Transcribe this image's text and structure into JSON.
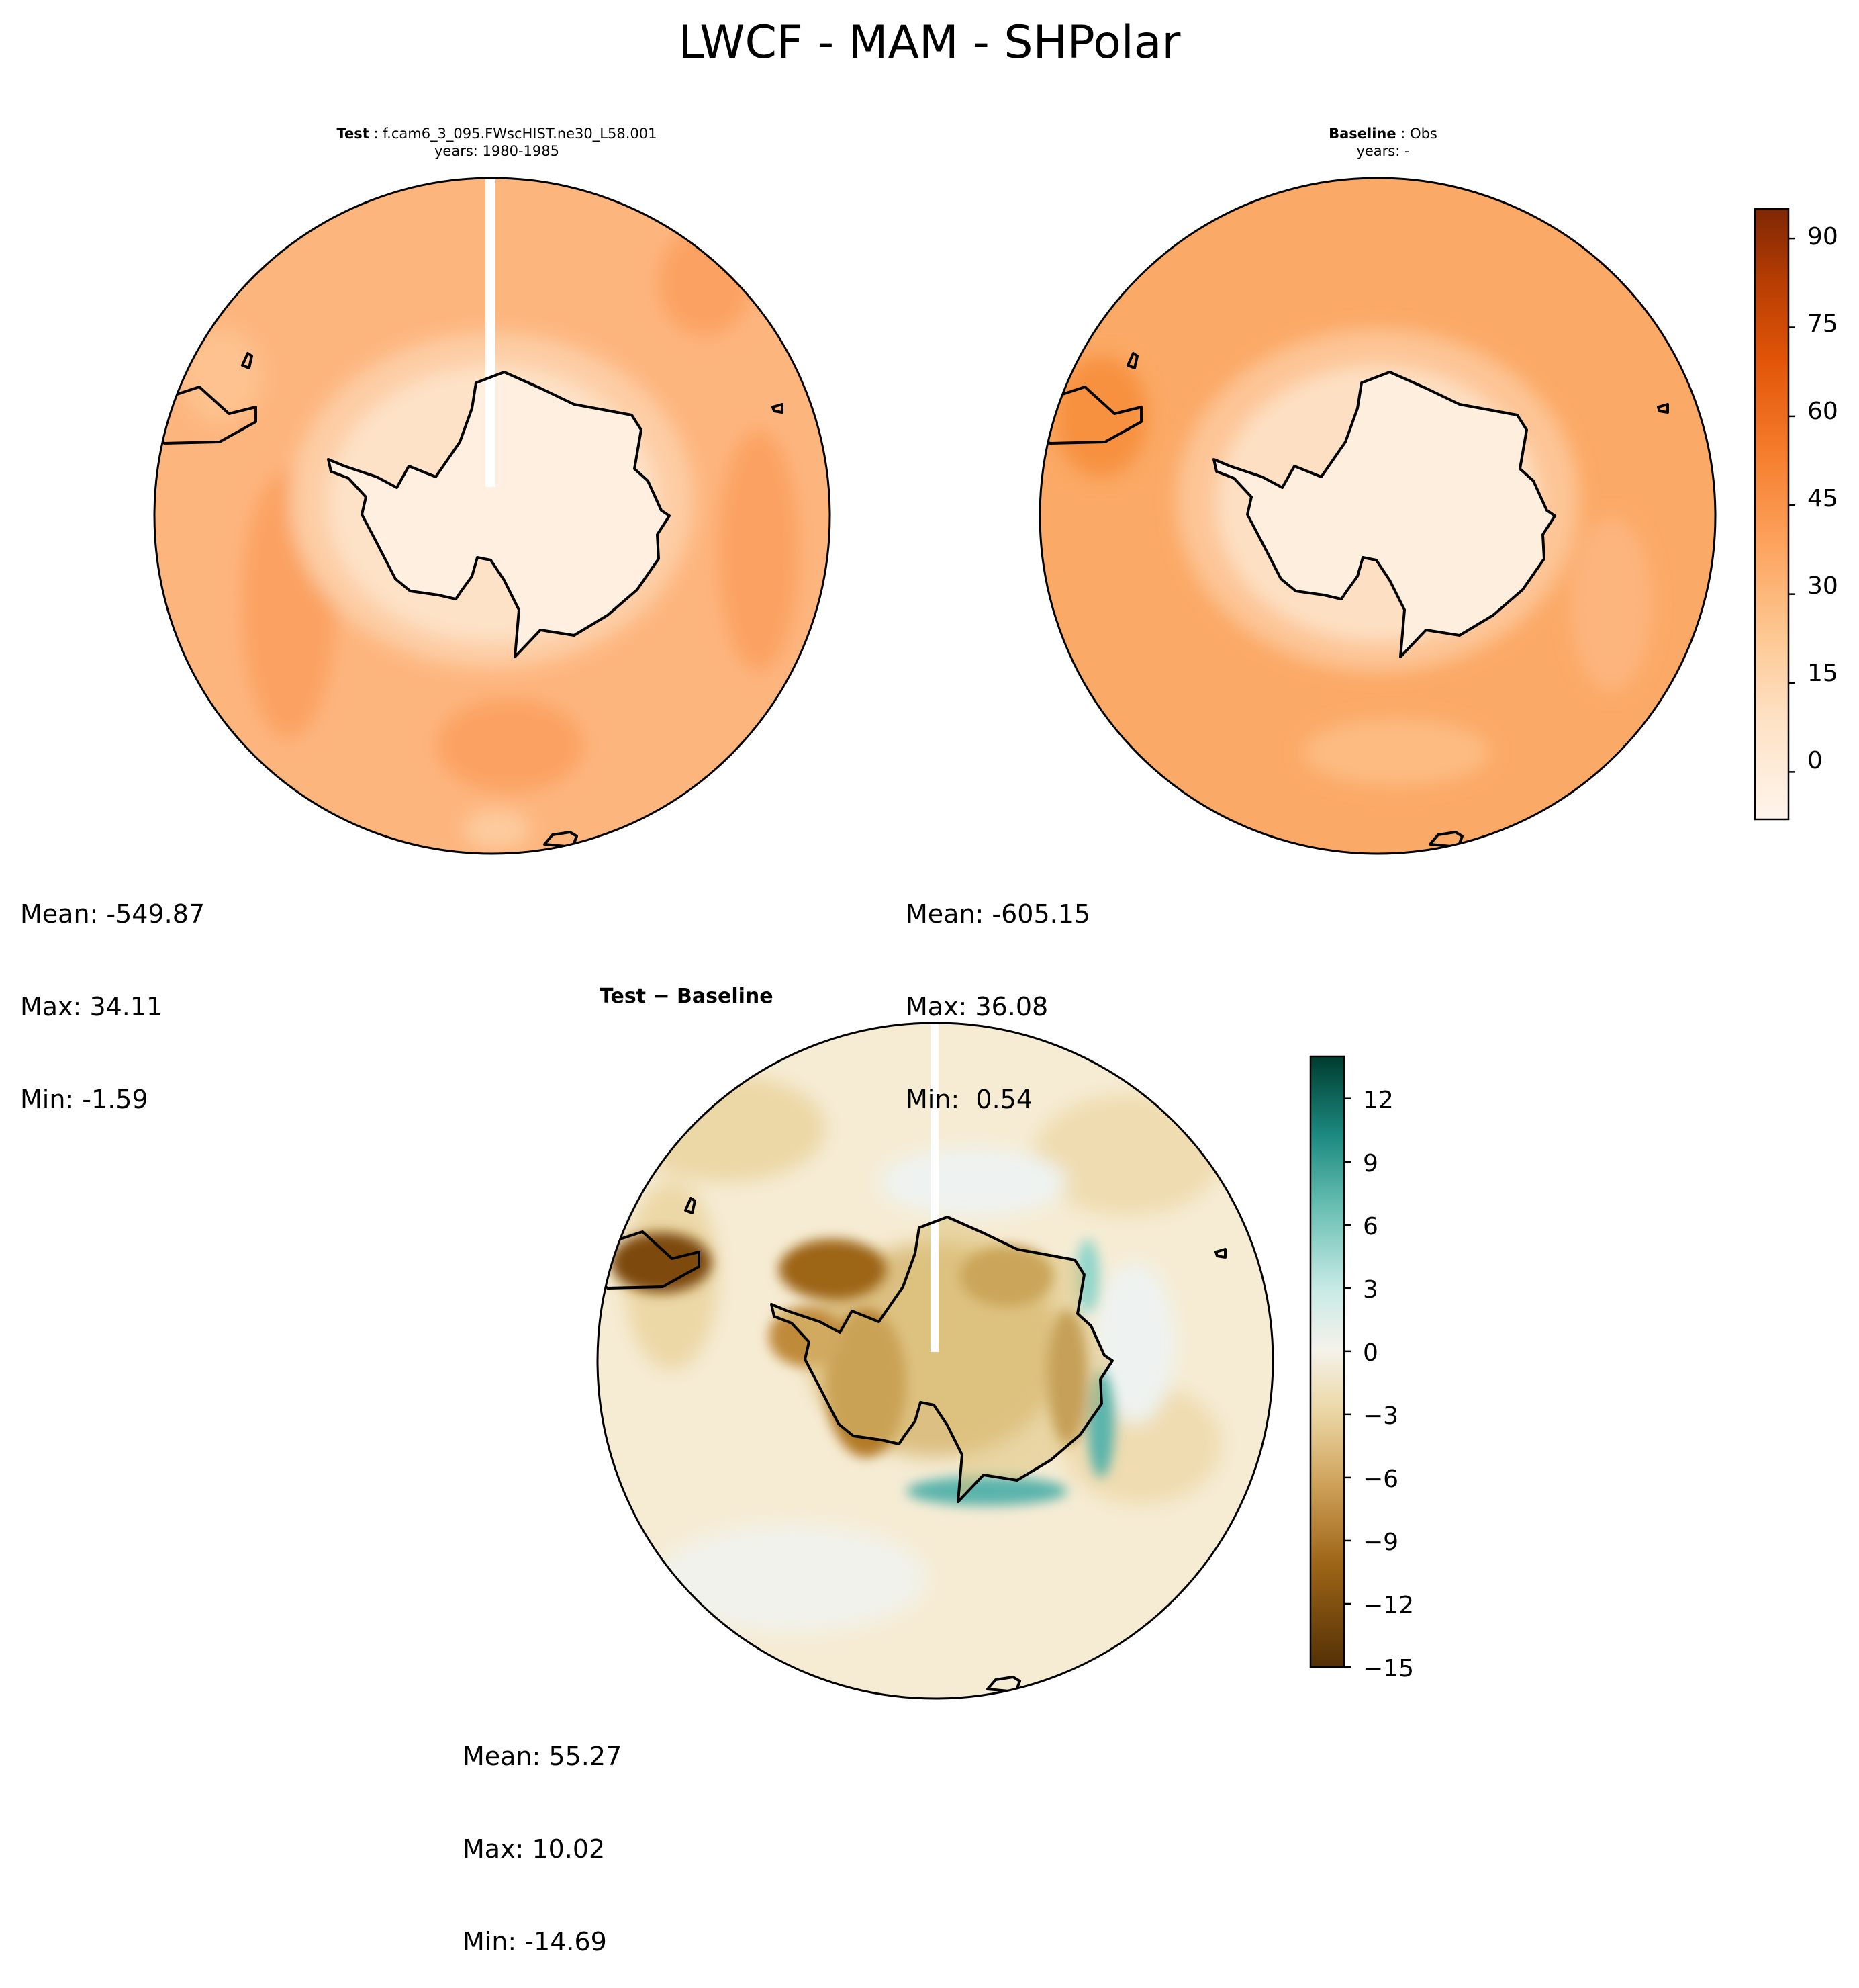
{
  "figure": {
    "title": "LWCF - MAM - SHPolar"
  },
  "panels": {
    "test": {
      "label": "Test",
      "case": "f.cam6_3_095.FWscHIST.ne30_L58.001",
      "years": "years: 1980-1985",
      "stats": {
        "mean": "Mean: -549.87",
        "max": "Max: 34.11",
        "min": "Min: -1.59"
      }
    },
    "baseline": {
      "label": "Baseline",
      "case": "Obs",
      "years": "years: -",
      "stats": {
        "mean": "Mean: -605.15",
        "max": "Max: 36.08",
        "min": "Min:  0.54"
      }
    },
    "diff": {
      "title": "Test − Baseline",
      "stats": {
        "mean": "Mean: 55.27",
        "max": "Max: 10.02",
        "min": "Min: -14.69"
      }
    }
  },
  "chart_data": [
    {
      "type": "heatmap",
      "name": "Test",
      "projection": "south-polar-stereographic",
      "colormap": "Oranges",
      "colorbar": {
        "ticks": [
          "0",
          "15",
          "30",
          "45",
          "60",
          "75",
          "90"
        ],
        "range": [
          -8,
          95
        ]
      },
      "stats": {
        "mean": -549.87,
        "max": 34.11,
        "min": -1.59
      }
    },
    {
      "type": "heatmap",
      "name": "Baseline",
      "projection": "south-polar-stereographic",
      "colormap": "Oranges",
      "colorbar": {
        "ticks": [
          "0",
          "15",
          "30",
          "45",
          "60",
          "75",
          "90"
        ],
        "range": [
          -8,
          95
        ]
      },
      "stats": {
        "mean": -605.15,
        "max": 36.08,
        "min": 0.54
      }
    },
    {
      "type": "heatmap",
      "name": "Test − Baseline",
      "projection": "south-polar-stereographic",
      "colormap": "BrBG",
      "colorbar": {
        "ticks": [
          "12",
          "9",
          "6",
          "3",
          "0",
          "−3",
          "−6",
          "−9",
          "−12",
          "−15"
        ],
        "range": [
          -15,
          14
        ]
      },
      "stats": {
        "mean": 55.27,
        "max": 10.02,
        "min": -14.69
      }
    }
  ],
  "colors": {
    "oranges": [
      "#fff5eb",
      "#feead5",
      "#fee0c0",
      "#fdd0a2",
      "#fdbf86",
      "#fdae6b",
      "#fd9d53",
      "#f8883b",
      "#f3741f",
      "#e6550d",
      "#d94701",
      "#c04002",
      "#a63603",
      "#7f2704"
    ],
    "brbg": [
      "#543005",
      "#7d4a0b",
      "#9d6517",
      "#bf812d",
      "#d1a55f",
      "#dfc27d",
      "#ebd6a4",
      "#f6e8c3",
      "#f5f0e6",
      "#eef4f3",
      "#c7eae5",
      "#92d6cb",
      "#5ab4ac",
      "#2e938a",
      "#01665e",
      "#003c30"
    ],
    "land_outline": "#000000"
  }
}
